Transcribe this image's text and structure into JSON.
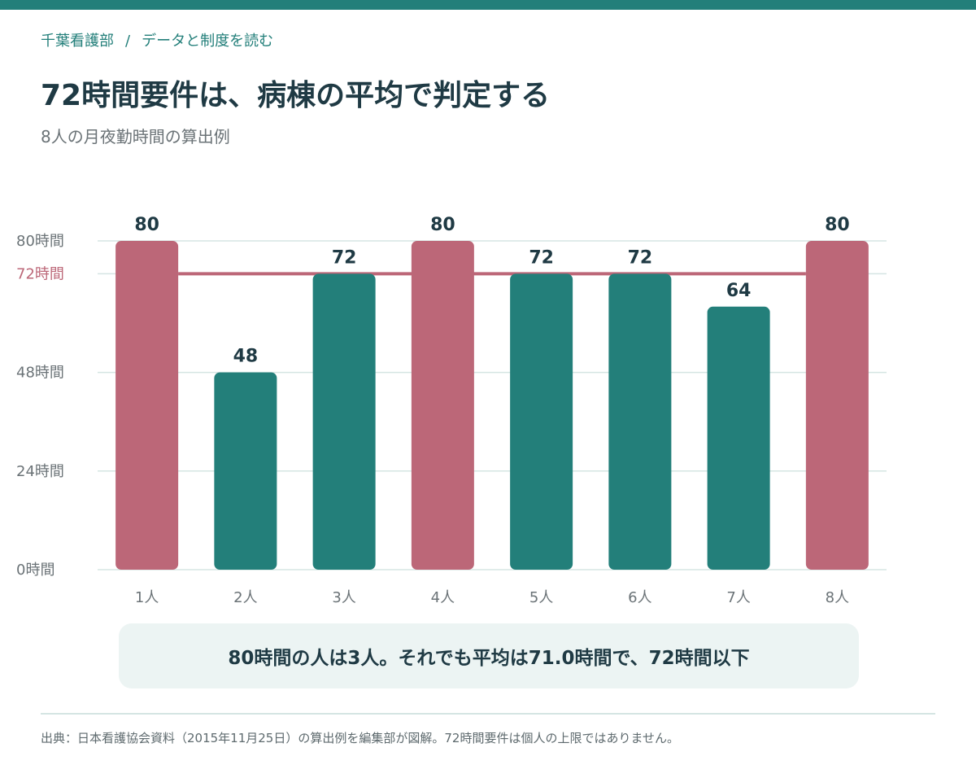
{
  "breadcrumb": {
    "parent": "千葉看護部",
    "separator": "/",
    "current": "データと制度を読む"
  },
  "header": {
    "title": "72時間要件は、病棟の平均で判定する",
    "subtitle": "8人の月夜勤時間の算出例"
  },
  "colors": {
    "accent": "#237f7a",
    "highlight": "#bc6778",
    "text": "#1f3a44",
    "grid": "#d5e5e3"
  },
  "chart_data": {
    "type": "bar",
    "categories": [
      "1人",
      "2人",
      "3人",
      "4人",
      "5人",
      "6人",
      "7人",
      "8人"
    ],
    "values": [
      80,
      48,
      72,
      80,
      72,
      72,
      64,
      80
    ],
    "highlighted": [
      true,
      false,
      false,
      true,
      false,
      false,
      false,
      true
    ],
    "ylim": [
      0,
      80
    ],
    "yticks": [
      {
        "value": 0,
        "label": "0時間"
      },
      {
        "value": 24,
        "label": "24時間"
      },
      {
        "value": 48,
        "label": "48時間"
      },
      {
        "value": 72,
        "label": "72時間"
      },
      {
        "value": 80,
        "label": "80時間"
      }
    ],
    "reference_line": {
      "value": 72,
      "label": "72時間"
    },
    "grid": true,
    "data_labels": true
  },
  "callout": {
    "text": "80時間の人は3人。それでも平均は71.0時間で、72時間以下"
  },
  "footer": {
    "source": "出典：日本看護協会資料（2015年11月25日）の算出例を編集部が図解。72時間要件は個人の上限ではありません。"
  }
}
